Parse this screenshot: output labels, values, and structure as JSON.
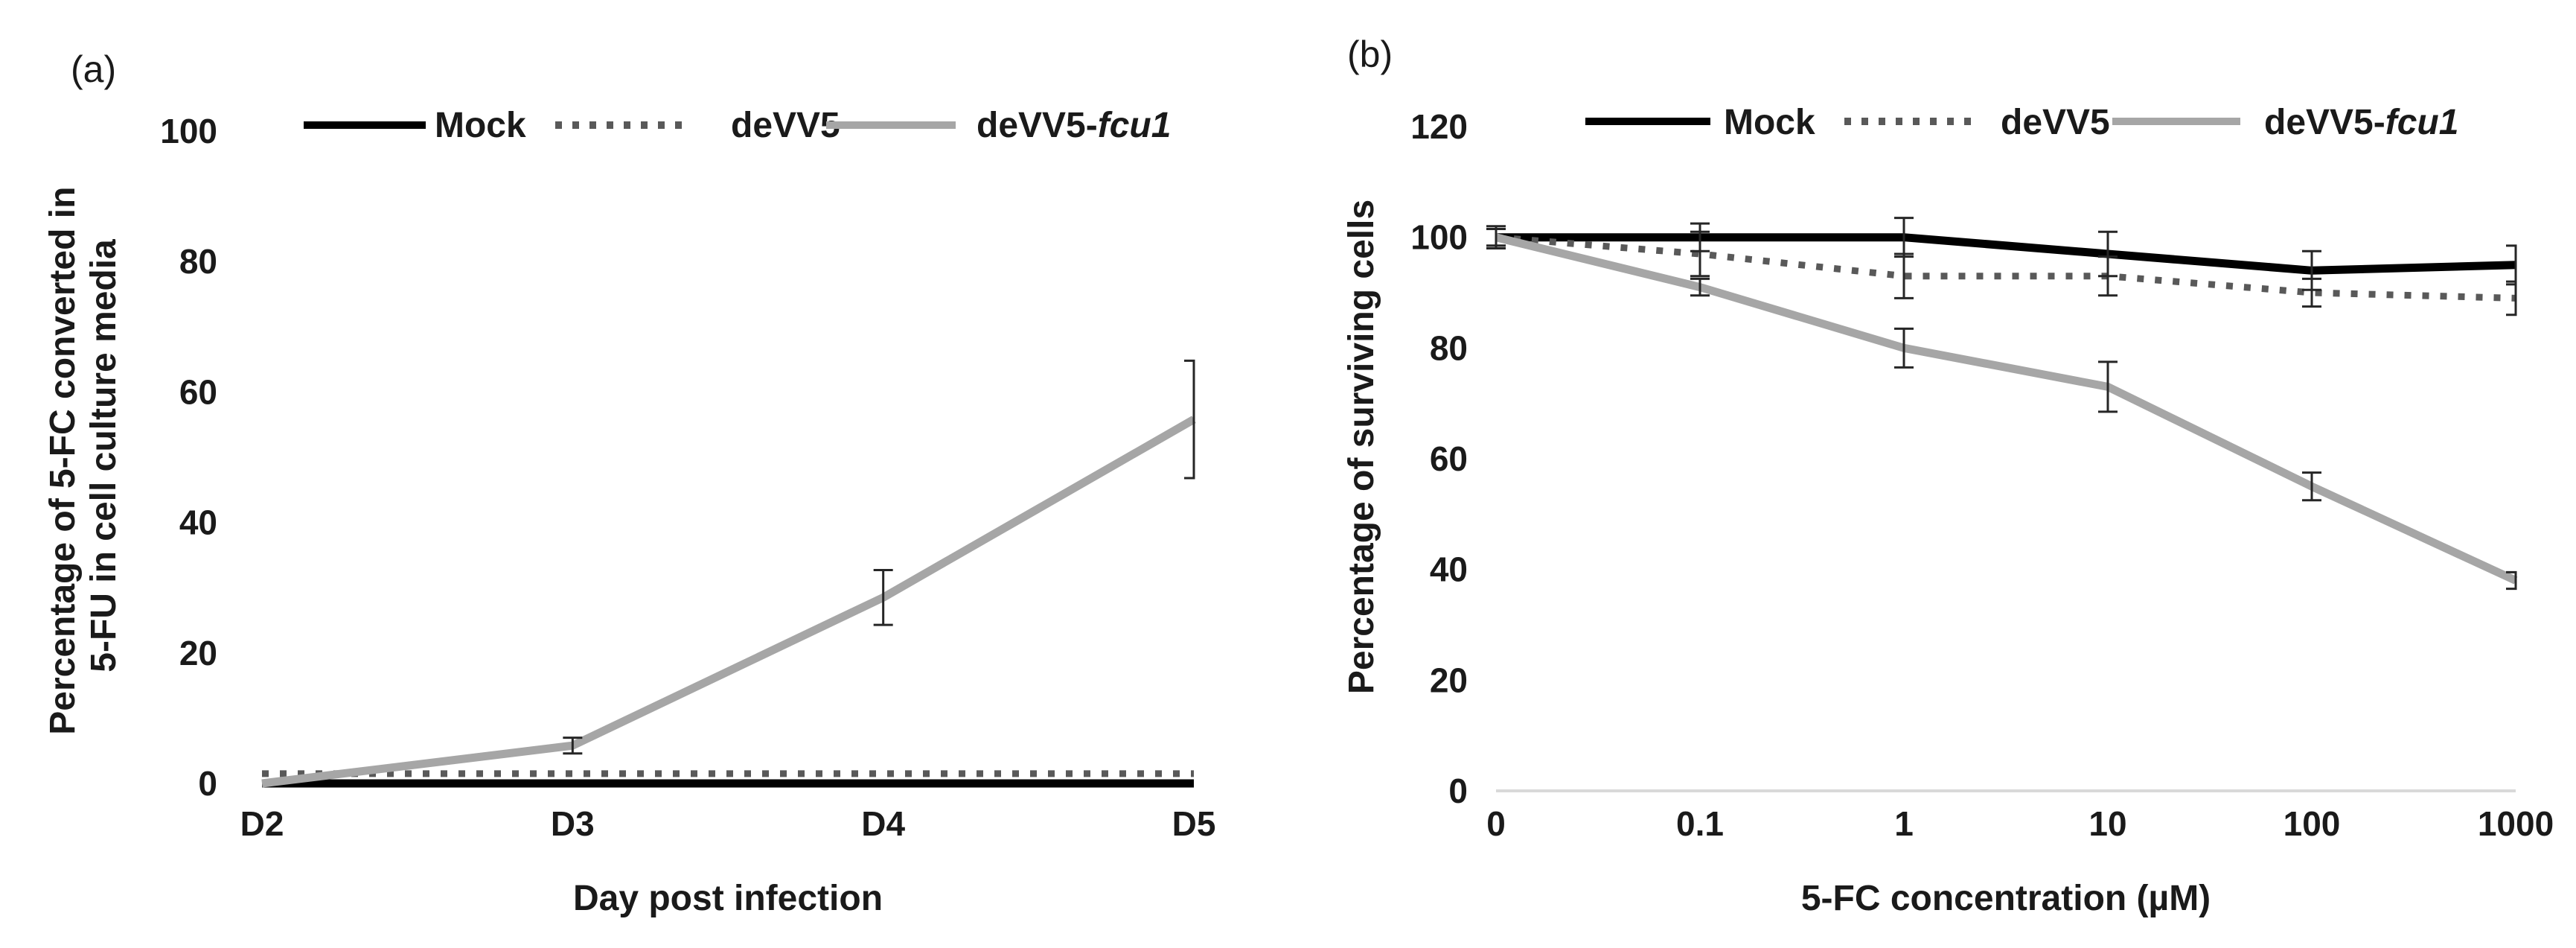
{
  "colors": {
    "mock": "#000000",
    "devv5": "#595959",
    "devv5_fcu1": "#a6a6a6",
    "errorbar": "#262626",
    "axis": "#d9d9d9"
  },
  "chart_data": [
    {
      "panel_label": "(a)",
      "type": "line",
      "title": "",
      "xlabel": "Day post infection",
      "ylabel_lines": [
        "Percentage of 5-FC converted in",
        "5-FU in cell culture media"
      ],
      "categories": [
        "D2",
        "D3",
        "D4",
        "D5"
      ],
      "ylim": [
        0,
        100
      ],
      "yticks": [
        0,
        20,
        40,
        60,
        80,
        100
      ],
      "grid": false,
      "legend": {
        "position": "top",
        "entries": [
          {
            "label": "Mock",
            "label_main": "Mock",
            "label_italic": "",
            "style": "solid-black"
          },
          {
            "label": "deVV5",
            "label_main": "deVV5",
            "label_italic": "",
            "style": "dotted-gray"
          },
          {
            "label": "deVV5-fcu1",
            "label_main": "deVV5-",
            "label_italic": "fcu1",
            "style": "solid-lightgray"
          }
        ]
      },
      "series": [
        {
          "name": "Mock",
          "values": [
            0,
            0,
            0,
            0
          ],
          "errors": [
            0,
            0,
            0,
            0
          ]
        },
        {
          "name": "deVV5",
          "values": [
            1.5,
            1.5,
            1.5,
            1.5
          ],
          "errors": [
            0,
            0,
            0,
            0
          ]
        },
        {
          "name": "deVV5-fcu1",
          "values": [
            0,
            5.8,
            28.5,
            55.8
          ],
          "errors": [
            0,
            1.2,
            4.2,
            9
          ]
        }
      ]
    },
    {
      "panel_label": "(b)",
      "type": "line",
      "title": "",
      "xlabel": "5-FC concentration (µM)",
      "ylabel_lines": [
        "Percentage of surviving cells"
      ],
      "categories": [
        "0",
        "0.1",
        "1",
        "10",
        "100",
        "1000"
      ],
      "ylim": [
        0,
        120
      ],
      "yticks": [
        0,
        20,
        40,
        60,
        80,
        100,
        120
      ],
      "grid": false,
      "legend": {
        "position": "top",
        "entries": [
          {
            "label": "Mock",
            "label_main": "Mock",
            "label_italic": "",
            "style": "solid-black"
          },
          {
            "label": "deVV5",
            "label_main": "deVV5",
            "label_italic": "",
            "style": "dotted-gray"
          },
          {
            "label": "deVV5-fcu1",
            "label_main": "deVV5-",
            "label_italic": "fcu1",
            "style": "solid-lightgray"
          }
        ]
      },
      "series": [
        {
          "name": "Mock",
          "values": [
            100,
            100,
            100,
            97,
            94,
            95
          ],
          "errors": [
            2,
            2.5,
            3.5,
            4,
            3.5,
            3.5
          ]
        },
        {
          "name": "deVV5",
          "values": [
            100,
            97,
            93,
            93,
            90,
            89
          ],
          "errors": [
            1.5,
            4,
            4,
            3.5,
            2.5,
            3
          ]
        },
        {
          "name": "deVV5-fcu1",
          "values": [
            100,
            91,
            80,
            73,
            55,
            38
          ],
          "errors": [
            1.5,
            1.5,
            3.5,
            4.5,
            2.5,
            1.5
          ]
        }
      ]
    }
  ]
}
